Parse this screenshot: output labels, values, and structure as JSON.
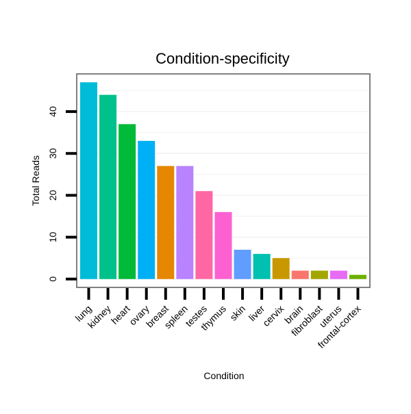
{
  "chart_data": {
    "type": "bar",
    "title": "Condition-specificity",
    "xlabel": "Condition",
    "ylabel": "Total Reads",
    "ylim": [
      -2,
      49
    ],
    "yticks": [
      0,
      10,
      20,
      30,
      40
    ],
    "grid": true,
    "legend": "none",
    "categories": [
      "lung",
      "kidney",
      "heart",
      "ovary",
      "breast",
      "spleen",
      "testes",
      "thymus",
      "skin",
      "liver",
      "cervix",
      "brain",
      "fibroblast",
      "uterus",
      "frontal-cortex"
    ],
    "values": [
      47,
      44,
      37,
      33,
      27,
      27,
      21,
      16,
      7,
      6,
      5,
      2,
      2,
      2,
      1
    ],
    "colors": [
      "#00BCD8",
      "#00C08B",
      "#00BA38",
      "#00B0F6",
      "#E58700",
      "#B983FF",
      "#FF67A4",
      "#FD61D1",
      "#619CFF",
      "#00C0AF",
      "#C99800",
      "#F8766D",
      "#A3A500",
      "#E76BF3",
      "#6BB100"
    ]
  }
}
